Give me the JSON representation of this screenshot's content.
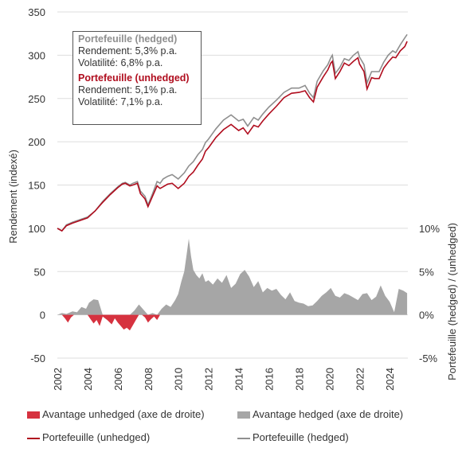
{
  "chart_data": {
    "type": "line+area",
    "colors": {
      "hedged": "#8f8f8f",
      "unhedged": "#b00d1e",
      "adv_hedged": "#a6a6a6",
      "adv_unhedged": "#d6323f"
    },
    "ylabel": "Rendement (indexé)",
    "ylabel_right": "Portefeuille (hedged) / (unhedged)",
    "ylim": [
      -50,
      350
    ],
    "yticks": [
      "-50",
      "0",
      "50",
      "100",
      "150",
      "200",
      "250",
      "300",
      "350"
    ],
    "ylim_right_pct": [
      -5,
      10
    ],
    "yticks_right": [
      "-5%",
      "0%",
      "5%",
      "10%"
    ],
    "xlim": [
      2002,
      2025.2
    ],
    "xticks": [
      "2002",
      "2004",
      "2006",
      "2008",
      "2010",
      "2012",
      "2014",
      "2016",
      "2018",
      "2020",
      "2022",
      "2024"
    ],
    "series": [
      {
        "name": "Portefeuille (hedged)",
        "x": [
          2002.0,
          2002.3,
          2002.6,
          2003.0,
          2003.5,
          2004.0,
          2004.5,
          2005.0,
          2005.5,
          2006.0,
          2006.3,
          2006.5,
          2006.8,
          2007.0,
          2007.3,
          2007.5,
          2007.8,
          2008.0,
          2008.3,
          2008.6,
          2008.8,
          2009.0,
          2009.3,
          2009.6,
          2010.0,
          2010.4,
          2010.7,
          2011.0,
          2011.3,
          2011.6,
          2011.8,
          2012.0,
          2012.5,
          2013.0,
          2013.5,
          2014.0,
          2014.3,
          2014.6,
          2015.0,
          2015.3,
          2015.6,
          2016.0,
          2016.5,
          2017.0,
          2017.5,
          2018.0,
          2018.4,
          2018.7,
          2018.95,
          2019.2,
          2019.6,
          2019.9,
          2020.1,
          2020.2,
          2020.4,
          2020.7,
          2021.0,
          2021.3,
          2021.6,
          2021.9,
          2022.0,
          2022.3,
          2022.5,
          2022.8,
          2023.0,
          2023.3,
          2023.6,
          2023.9,
          2024.2,
          2024.4,
          2024.7,
          2025.0,
          2025.15
        ],
        "y": [
          100,
          97,
          104,
          107,
          110,
          113,
          120,
          131,
          140,
          148,
          152,
          153,
          150,
          152,
          154,
          143,
          137,
          127,
          140,
          154,
          152,
          157,
          160,
          162,
          157,
          164,
          172,
          177,
          185,
          191,
          199,
          203,
          215,
          225,
          231,
          224,
          226,
          218,
          228,
          225,
          232,
          240,
          248,
          257,
          262,
          262,
          265,
          256,
          251,
          270,
          282,
          289,
          297,
          300,
          279,
          286,
          296,
          294,
          300,
          304,
          298,
          289,
          268,
          281,
          281,
          281,
          292,
          300,
          305,
          303,
          312,
          320,
          324
        ]
      },
      {
        "name": "Portefeuille (unhedged)",
        "x": [
          2002.0,
          2002.3,
          2002.6,
          2003.0,
          2003.5,
          2004.0,
          2004.5,
          2005.0,
          2005.5,
          2006.0,
          2006.3,
          2006.5,
          2006.8,
          2007.0,
          2007.3,
          2007.5,
          2007.8,
          2008.0,
          2008.3,
          2008.6,
          2008.8,
          2009.0,
          2009.3,
          2009.6,
          2010.0,
          2010.4,
          2010.7,
          2011.0,
          2011.3,
          2011.6,
          2011.8,
          2012.0,
          2012.5,
          2013.0,
          2013.5,
          2014.0,
          2014.3,
          2014.6,
          2015.0,
          2015.3,
          2015.6,
          2016.0,
          2016.5,
          2017.0,
          2017.5,
          2018.0,
          2018.4,
          2018.7,
          2018.95,
          2019.2,
          2019.6,
          2019.9,
          2020.1,
          2020.2,
          2020.4,
          2020.7,
          2021.0,
          2021.3,
          2021.6,
          2021.9,
          2022.0,
          2022.3,
          2022.5,
          2022.8,
          2023.0,
          2023.3,
          2023.6,
          2023.9,
          2024.2,
          2024.4,
          2024.7,
          2025.0,
          2025.15
        ],
        "y": [
          100,
          97,
          103,
          106,
          109,
          112,
          120,
          130,
          139,
          147,
          151,
          152,
          149,
          150,
          152,
          140,
          134,
          125,
          137,
          149,
          146,
          148,
          151,
          152,
          146,
          152,
          160,
          165,
          173,
          180,
          189,
          193,
          205,
          214,
          220,
          213,
          216,
          209,
          219,
          217,
          224,
          232,
          241,
          251,
          256,
          257,
          259,
          251,
          246,
          263,
          275,
          283,
          291,
          293,
          273,
          281,
          291,
          288,
          293,
          297,
          290,
          281,
          261,
          274,
          273,
          273,
          285,
          292,
          298,
          297,
          305,
          310,
          316
        ]
      },
      {
        "name": "Avantage hedged (axe de droite)",
        "x": [
          2002.0,
          2002.3,
          2002.6,
          2003.0,
          2003.3,
          2003.6,
          2003.9,
          2004.1,
          2004.4,
          2004.7,
          2005.0,
          2005.3,
          2005.6,
          2005.9,
          2006.2,
          2006.5,
          2006.8,
          2007.1,
          2007.4,
          2007.7,
          2008.0,
          2008.3,
          2008.6,
          2008.9,
          2009.2,
          2009.5,
          2009.8,
          2010.0,
          2010.2,
          2010.4,
          2010.55,
          2010.7,
          2010.85,
          2011.0,
          2011.2,
          2011.4,
          2011.6,
          2011.8,
          2012.0,
          2012.3,
          2012.6,
          2012.9,
          2013.2,
          2013.5,
          2013.8,
          2014.1,
          2014.4,
          2014.7,
          2015.0,
          2015.3,
          2015.6,
          2015.9,
          2016.2,
          2016.5,
          2016.8,
          2017.1,
          2017.4,
          2017.7,
          2018.0,
          2018.3,
          2018.6,
          2018.9,
          2019.2,
          2019.5,
          2019.8,
          2020.1,
          2020.4,
          2020.7,
          2021.0,
          2021.3,
          2021.6,
          2021.9,
          2022.2,
          2022.5,
          2022.8,
          2023.1,
          2023.4,
          2023.7,
          2024.0,
          2024.3,
          2024.6,
          2024.9,
          2025.15
        ],
        "y_pct": [
          0.0,
          0.2,
          0.1,
          0.4,
          0.3,
          0.9,
          0.7,
          1.4,
          1.8,
          1.7,
          0.0,
          0.0,
          0.0,
          0.0,
          0.0,
          0.0,
          0.0,
          0.5,
          1.2,
          0.6,
          0.0,
          0.2,
          0.0,
          0.7,
          1.2,
          0.9,
          1.7,
          2.4,
          3.8,
          5.0,
          6.9,
          8.8,
          6.8,
          5.2,
          4.6,
          4.2,
          4.8,
          3.8,
          4.0,
          3.5,
          4.2,
          3.7,
          4.6,
          3.1,
          3.6,
          4.7,
          5.2,
          4.4,
          3.2,
          3.9,
          2.6,
          3.1,
          2.8,
          3.0,
          2.3,
          1.8,
          2.6,
          1.6,
          1.4,
          1.3,
          1.0,
          1.1,
          1.6,
          2.2,
          2.6,
          3.1,
          2.2,
          2.0,
          2.5,
          2.3,
          2.0,
          1.7,
          2.4,
          2.5,
          1.7,
          2.1,
          3.4,
          2.2,
          1.5,
          0.3,
          3.0,
          2.8,
          2.5
        ]
      },
      {
        "name": "Avantage unhedged (axe de droite)",
        "x": [
          2002.0,
          2002.3,
          2002.5,
          2002.7,
          2002.9,
          2003.1,
          2003.5,
          2004.0,
          2004.2,
          2004.4,
          2004.6,
          2004.8,
          2005.0,
          2005.3,
          2005.6,
          2005.8,
          2006.0,
          2006.2,
          2006.4,
          2006.6,
          2006.8,
          2007.0,
          2007.2,
          2007.4,
          2007.6,
          2007.8,
          2008.0,
          2008.2,
          2008.4,
          2008.6,
          2008.8
        ],
        "y_pct": [
          0.0,
          0.0,
          -0.4,
          -0.9,
          -0.3,
          0.0,
          0.0,
          0.0,
          -0.5,
          -1.0,
          -0.6,
          -1.3,
          -0.2,
          -0.6,
          -1.1,
          -0.4,
          -0.9,
          -1.3,
          -1.7,
          -1.5,
          -1.8,
          -1.2,
          -0.6,
          0.0,
          0.0,
          -0.3,
          -0.9,
          -0.5,
          -0.2,
          -0.6,
          0.0
        ]
      }
    ]
  },
  "stats_box": {
    "hedged": {
      "title": "Portefeuille (hedged)",
      "return": "Rendement: 5,3% p.a.",
      "vol": "Volatilité: 6,8% p.a."
    },
    "unhedged": {
      "title": "Portefeuille (unhedged)",
      "return": "Rendement: 5,1% p.a.",
      "vol": "Volatilité: 7,1% p.a."
    }
  },
  "legend": {
    "adv_unhedged": "Avantage unhedged (axe de droite)",
    "adv_hedged": "Avantage hedged (axe de droite)",
    "line_unhedged": "Portefeuille (unhedged)",
    "line_hedged": "Portefeuille (hedged)"
  }
}
